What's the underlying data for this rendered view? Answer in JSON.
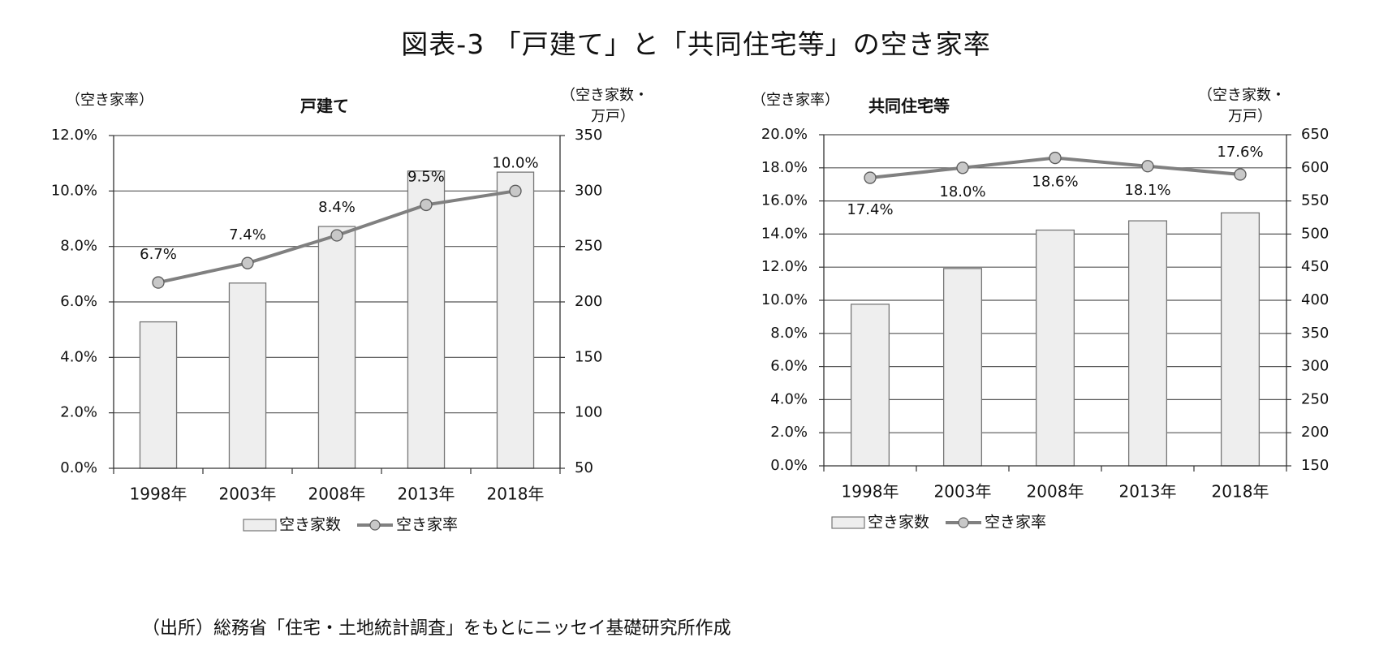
{
  "title": "図表-3 「戸建て」と「共同住宅等」の空き家率",
  "source": "（出所）総務省「住宅・土地統計調査」をもとにニッセイ基礎研究所作成",
  "colors": {
    "bar_fill": "#eeeeee",
    "bar_stroke": "#777777",
    "line": "#808080",
    "marker_fill": "#c8c8c8",
    "marker_stroke": "#5a5a5a",
    "grid": "#555555"
  },
  "chart_data": [
    {
      "type": "bar+line",
      "title": "戸建て",
      "y_left_label": "（空き家率）",
      "y_right_label_line1": "（空き家数・",
      "y_right_label_line2": "万戸）",
      "categories": [
        "1998年",
        "2003年",
        "2008年",
        "2013年",
        "2018年"
      ],
      "y_left_ticks": [
        "0.0%",
        "2.0%",
        "4.0%",
        "6.0%",
        "8.0%",
        "10.0%",
        "12.0%"
      ],
      "y_right_ticks": [
        "50",
        "100",
        "150",
        "200",
        "250",
        "300",
        "350"
      ],
      "ylim_left": [
        0,
        12
      ],
      "ylim_right": [
        50,
        350
      ],
      "grid": true,
      "legend_position": "bottom",
      "series": [
        {
          "name": "空き家数",
          "kind": "bar",
          "axis": "right",
          "values": [
            182,
            217,
            268,
            318,
            317
          ]
        },
        {
          "name": "空き家率",
          "kind": "line",
          "axis": "left",
          "values": [
            6.7,
            7.4,
            8.4,
            9.5,
            10.0
          ],
          "labels": [
            "6.7%",
            "7.4%",
            "8.4%",
            "9.5%",
            "10.0%"
          ]
        }
      ]
    },
    {
      "type": "bar+line",
      "title": "共同住宅等",
      "y_left_label": "（空き家率）",
      "y_right_label_line1": "（空き家数・",
      "y_right_label_line2": "万戸）",
      "categories": [
        "1998年",
        "2003年",
        "2008年",
        "2013年",
        "2018年"
      ],
      "y_left_ticks": [
        "0.0%",
        "2.0%",
        "4.0%",
        "6.0%",
        "8.0%",
        "10.0%",
        "12.0%",
        "14.0%",
        "16.0%",
        "18.0%",
        "20.0%"
      ],
      "y_right_ticks": [
        "150",
        "200",
        "250",
        "300",
        "350",
        "400",
        "450",
        "500",
        "550",
        "600",
        "650"
      ],
      "ylim_left": [
        0,
        20
      ],
      "ylim_right": [
        150,
        650
      ],
      "grid": true,
      "legend_position": "bottom",
      "series": [
        {
          "name": "空き家数",
          "kind": "bar",
          "axis": "right",
          "values": [
            394,
            448,
            506,
            520,
            532
          ]
        },
        {
          "name": "空き家率",
          "kind": "line",
          "axis": "left",
          "values": [
            17.4,
            18.0,
            18.6,
            18.1,
            17.6
          ],
          "labels": [
            "17.4%",
            "18.0%",
            "18.6%",
            "18.1%",
            "17.6%"
          ]
        }
      ]
    }
  ]
}
